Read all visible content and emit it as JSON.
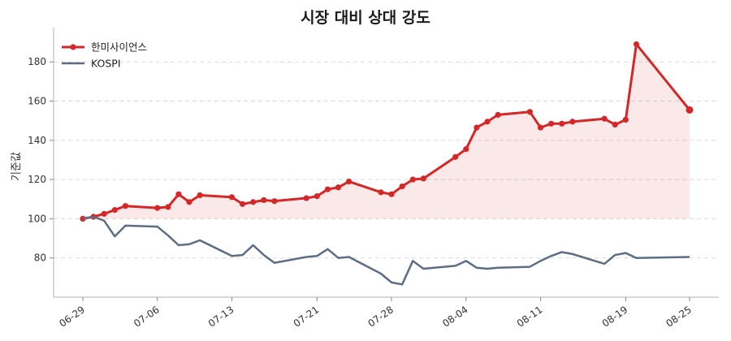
{
  "chart_data": {
    "type": "line",
    "title": "시장 대비 상대 강도",
    "xlabel": "",
    "ylabel": "기준값",
    "ylim": [
      60,
      195
    ],
    "yticks": [
      80,
      100,
      120,
      140,
      160,
      180
    ],
    "x": [
      "06-29",
      "06-30",
      "07-01",
      "07-02",
      "07-03",
      "07-04",
      "07-05",
      "07-06",
      "07-07",
      "07-08",
      "07-09",
      "07-10",
      "07-11",
      "07-12",
      "07-13",
      "07-14",
      "07-15",
      "07-16",
      "07-17",
      "07-18",
      "07-19",
      "07-20",
      "07-21",
      "07-22",
      "07-23",
      "07-24",
      "07-25",
      "07-26",
      "07-27",
      "07-28",
      "07-29",
      "07-30",
      "07-31",
      "08-01",
      "08-02",
      "08-03",
      "08-04",
      "08-05",
      "08-06",
      "08-07",
      "08-08",
      "08-09",
      "08-10",
      "08-11",
      "08-12",
      "08-13",
      "08-14",
      "08-15",
      "08-16",
      "08-17",
      "08-18",
      "08-19",
      "08-20",
      "08-21",
      "08-22",
      "08-23",
      "08-24",
      "08-25"
    ],
    "xtick_labels": [
      "06-29",
      "07-06",
      "07-13",
      "07-21",
      "07-28",
      "08-04",
      "08-11",
      "08-19",
      "08-25"
    ],
    "grid": true,
    "legend": "top-left",
    "series": [
      {
        "name": "한미사이언스",
        "color": "#d62728",
        "marker": "circle",
        "fill": true,
        "baseline": 100,
        "points": [
          [
            "06-29",
            100
          ],
          [
            "06-30",
            101
          ],
          [
            "07-01",
            102.5
          ],
          [
            "07-02",
            104.5
          ],
          [
            "07-03",
            106.5
          ],
          [
            "07-06",
            105.5
          ],
          [
            "07-07",
            106
          ],
          [
            "07-08",
            112.5
          ],
          [
            "07-09",
            108.5
          ],
          [
            "07-10",
            112
          ],
          [
            "07-13",
            111
          ],
          [
            "07-14",
            107.5
          ],
          [
            "07-15",
            108.5
          ],
          [
            "07-16",
            109.5
          ],
          [
            "07-17",
            109
          ],
          [
            "07-20",
            110.5
          ],
          [
            "07-21",
            111.5
          ],
          [
            "07-22",
            115
          ],
          [
            "07-23",
            116
          ],
          [
            "07-24",
            119
          ],
          [
            "07-27",
            113.5
          ],
          [
            "07-28",
            112.5
          ],
          [
            "07-29",
            116.5
          ],
          [
            "07-30",
            120
          ],
          [
            "07-31",
            120.5
          ],
          [
            "08-03",
            131.5
          ],
          [
            "08-04",
            135.5
          ],
          [
            "08-05",
            146.5
          ],
          [
            "08-06",
            149.5
          ],
          [
            "08-07",
            153
          ],
          [
            "08-10",
            154.5
          ],
          [
            "08-11",
            146.5
          ],
          [
            "08-12",
            148.5
          ],
          [
            "08-13",
            148.5
          ],
          [
            "08-14",
            149.5
          ],
          [
            "08-17",
            151
          ],
          [
            "08-18",
            148
          ],
          [
            "08-19",
            150.5
          ],
          [
            "08-20",
            189
          ],
          [
            "08-25",
            155.5
          ]
        ]
      },
      {
        "name": "KOSPI",
        "color": "#5d6d83",
        "marker": "none",
        "fill": false,
        "points": [
          [
            "06-29",
            100
          ],
          [
            "06-30",
            101
          ],
          [
            "07-01",
            99
          ],
          [
            "07-02",
            91
          ],
          [
            "07-03",
            96.5
          ],
          [
            "07-06",
            96
          ],
          [
            "07-07",
            91.5
          ],
          [
            "07-08",
            86.5
          ],
          [
            "07-09",
            87
          ],
          [
            "07-10",
            89
          ],
          [
            "07-13",
            81
          ],
          [
            "07-14",
            81.5
          ],
          [
            "07-15",
            86.5
          ],
          [
            "07-16",
            81.5
          ],
          [
            "07-17",
            77.5
          ],
          [
            "07-20",
            80.5
          ],
          [
            "07-21",
            81
          ],
          [
            "07-22",
            84.5
          ],
          [
            "07-23",
            80
          ],
          [
            "07-24",
            80.5
          ],
          [
            "07-27",
            72
          ],
          [
            "07-28",
            67.5
          ],
          [
            "07-29",
            66.5
          ],
          [
            "07-30",
            78.5
          ],
          [
            "07-31",
            74.5
          ],
          [
            "08-03",
            76
          ],
          [
            "08-04",
            78.5
          ],
          [
            "08-05",
            75
          ],
          [
            "08-06",
            74.5
          ],
          [
            "08-07",
            75
          ],
          [
            "08-10",
            75.5
          ],
          [
            "08-11",
            78.5
          ],
          [
            "08-12",
            81
          ],
          [
            "08-13",
            83
          ],
          [
            "08-14",
            82
          ],
          [
            "08-17",
            77
          ],
          [
            "08-18",
            81.5
          ],
          [
            "08-19",
            82.5
          ],
          [
            "08-20",
            80
          ],
          [
            "08-25",
            80.5
          ]
        ]
      }
    ]
  }
}
